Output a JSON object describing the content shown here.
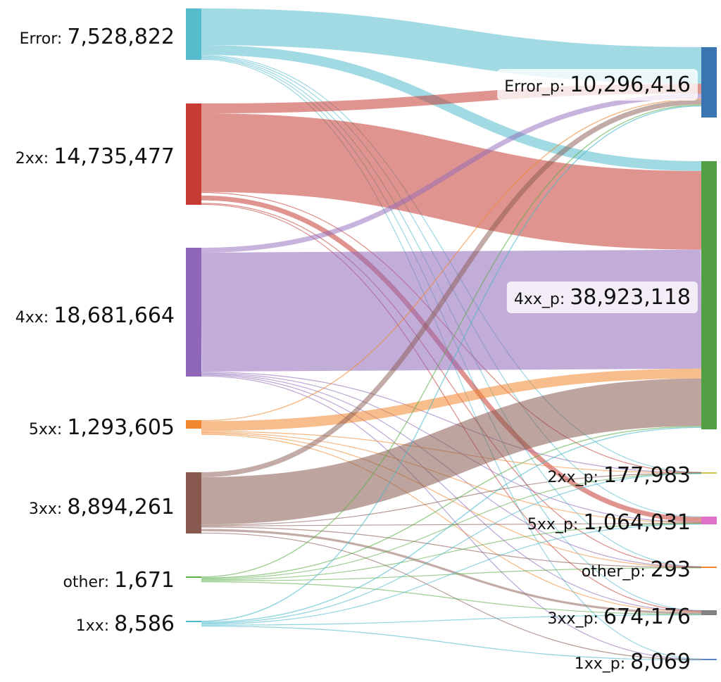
{
  "diagram": {
    "type": "sankey",
    "sources": [
      {
        "id": "error",
        "name": "Error",
        "value": "7,528,822",
        "color": "#55bcce"
      },
      {
        "id": "2xx",
        "name": "2xx",
        "value": "14,735,477",
        "color": "#c63c35"
      },
      {
        "id": "4xx",
        "name": "4xx",
        "value": "18,681,664",
        "color": "#8f67b8"
      },
      {
        "id": "5xx",
        "name": "5xx",
        "value": "1,293,605",
        "color": "#f2872e"
      },
      {
        "id": "3xx",
        "name": "3xx",
        "value": "8,894,261",
        "color": "#87594f"
      },
      {
        "id": "other",
        "name": "other",
        "value": "1,671",
        "color": "#5aad48"
      },
      {
        "id": "1xx",
        "name": "1xx",
        "value": "8,586",
        "color": "#45b7c9"
      }
    ],
    "targets": [
      {
        "id": "error_p",
        "name": "Error_p",
        "value": "10,296,416",
        "color": "#3a74b1"
      },
      {
        "id": "4xx_p",
        "name": "4xx_p",
        "value": "38,923,118",
        "color": "#52a043"
      },
      {
        "id": "2xx_p",
        "name": "2xx_p",
        "value": "177,983",
        "color": "#c9c54a"
      },
      {
        "id": "5xx_p",
        "name": "5xx_p",
        "value": "1,064,031",
        "color": "#df72c8"
      },
      {
        "id": "other_p",
        "name": "other_p",
        "value": "293",
        "color": "#f2872e"
      },
      {
        "id": "3xx_p",
        "name": "3xx_p",
        "value": "674,176",
        "color": "#828282"
      },
      {
        "id": "1xx_p",
        "name": "1xx_p",
        "value": "8,069",
        "color": "#5b85c4"
      }
    ],
    "flows": [
      {
        "from": "error",
        "to": "error_p",
        "weight": "major"
      },
      {
        "from": "error",
        "to": "4xx_p",
        "weight": "medium"
      },
      {
        "from": "error",
        "to": "2xx_p",
        "weight": "thin"
      },
      {
        "from": "error",
        "to": "5xx_p",
        "weight": "thin"
      },
      {
        "from": "error",
        "to": "other_p",
        "weight": "thin"
      },
      {
        "from": "error",
        "to": "3xx_p",
        "weight": "thin"
      },
      {
        "from": "error",
        "to": "1xx_p",
        "weight": "thin"
      },
      {
        "from": "2xx",
        "to": "error_p",
        "weight": "medium"
      },
      {
        "from": "2xx",
        "to": "4xx_p",
        "weight": "major"
      },
      {
        "from": "2xx",
        "to": "2xx_p",
        "weight": "thin"
      },
      {
        "from": "2xx",
        "to": "5xx_p",
        "weight": "medium"
      },
      {
        "from": "2xx",
        "to": "other_p",
        "weight": "thin"
      },
      {
        "from": "2xx",
        "to": "3xx_p",
        "weight": "thin"
      },
      {
        "from": "4xx",
        "to": "error_p",
        "weight": "small"
      },
      {
        "from": "4xx",
        "to": "4xx_p",
        "weight": "major"
      },
      {
        "from": "4xx",
        "to": "2xx_p",
        "weight": "thin"
      },
      {
        "from": "4xx",
        "to": "5xx_p",
        "weight": "thin"
      },
      {
        "from": "4xx",
        "to": "other_p",
        "weight": "thin"
      },
      {
        "from": "4xx",
        "to": "3xx_p",
        "weight": "thin"
      },
      {
        "from": "4xx",
        "to": "1xx_p",
        "weight": "thin"
      },
      {
        "from": "5xx",
        "to": "error_p",
        "weight": "thin"
      },
      {
        "from": "5xx",
        "to": "4xx_p",
        "weight": "medium"
      },
      {
        "from": "5xx",
        "to": "2xx_p",
        "weight": "thin"
      },
      {
        "from": "5xx",
        "to": "5xx_p",
        "weight": "thin"
      },
      {
        "from": "5xx",
        "to": "other_p",
        "weight": "thin"
      },
      {
        "from": "5xx",
        "to": "3xx_p",
        "weight": "thin"
      },
      {
        "from": "3xx",
        "to": "error_p",
        "weight": "small"
      },
      {
        "from": "3xx",
        "to": "4xx_p",
        "weight": "major"
      },
      {
        "from": "3xx",
        "to": "2xx_p",
        "weight": "thin"
      },
      {
        "from": "3xx",
        "to": "5xx_p",
        "weight": "thin"
      },
      {
        "from": "3xx",
        "to": "other_p",
        "weight": "thin"
      },
      {
        "from": "3xx",
        "to": "3xx_p",
        "weight": "small"
      },
      {
        "from": "3xx",
        "to": "1xx_p",
        "weight": "thin"
      },
      {
        "from": "other",
        "to": "error_p",
        "weight": "thin"
      },
      {
        "from": "other",
        "to": "4xx_p",
        "weight": "thin"
      },
      {
        "from": "other",
        "to": "2xx_p",
        "weight": "thin"
      },
      {
        "from": "other",
        "to": "5xx_p",
        "weight": "thin"
      },
      {
        "from": "other",
        "to": "other_p",
        "weight": "thin"
      },
      {
        "from": "other",
        "to": "3xx_p",
        "weight": "thin"
      },
      {
        "from": "1xx",
        "to": "error_p",
        "weight": "thin"
      },
      {
        "from": "1xx",
        "to": "4xx_p",
        "weight": "thin"
      },
      {
        "from": "1xx",
        "to": "2xx_p",
        "weight": "thin"
      },
      {
        "from": "1xx",
        "to": "5xx_p",
        "weight": "thin"
      },
      {
        "from": "1xx",
        "to": "3xx_p",
        "weight": "thin"
      },
      {
        "from": "1xx",
        "to": "1xx_p",
        "weight": "thin"
      }
    ]
  }
}
